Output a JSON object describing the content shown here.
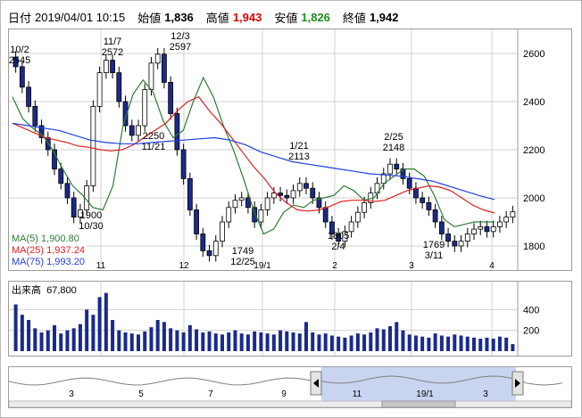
{
  "header": {
    "date_label": "日付",
    "date_value": "2019/04/01 10:15",
    "open_label": "始値",
    "open_value": "1,836",
    "high_label": "高値",
    "high_value": "1,943",
    "low_label": "安値",
    "low_value": "1,826",
    "close_label": "終値",
    "close_value": "1,942"
  },
  "colors": {
    "candle_down": "#1a2a8c",
    "ma5": "#2e7d32",
    "ma25": "#e02020",
    "ma75": "#2040e0",
    "high_text": "#e00000",
    "low_text": "#1e8c1e",
    "volume": "#1a2a8c",
    "navigator_fill": "#c8d4f0"
  },
  "ma_legend": [
    {
      "label": "MA(5)",
      "value": "1,900.80"
    },
    {
      "label": "MA(25)",
      "value": "1,937.24"
    },
    {
      "label": "MA(75)",
      "value": "1,993.20"
    }
  ],
  "volume_panel": {
    "label": "出来高",
    "value": "67,800"
  },
  "chart_data": {
    "type": "line",
    "ylim": [
      1700,
      2700
    ],
    "yticks": [
      "2600",
      "2400",
      "2200",
      "2000",
      "1800"
    ],
    "x_month_labels": [
      "11",
      "12",
      "19/1",
      "2",
      "3",
      "4"
    ],
    "annotations": [
      {
        "date": "10/2",
        "value": "2545"
      },
      {
        "date": "11/7",
        "value": "2572"
      },
      {
        "date": "12/3",
        "value": "2597"
      },
      {
        "date": "10/30",
        "value": "1900"
      },
      {
        "date": "11/21",
        "value": "2250"
      },
      {
        "date": "12/25",
        "value": "1749"
      },
      {
        "date": "1/21",
        "value": "2113"
      },
      {
        "date": "2/4",
        "value": "1805"
      },
      {
        "date": "2/25",
        "value": "2148"
      },
      {
        "date": "3/11",
        "value": "1769"
      }
    ],
    "series": [
      {
        "name": "MA(5)",
        "values": [
          2420,
          2330,
          2290,
          2260,
          2200,
          2120,
          2050,
          2010,
          1960,
          1950,
          2050,
          2300,
          2430,
          2490,
          2440,
          2320,
          2250,
          2280,
          2400,
          2500,
          2420,
          2300,
          2200,
          2080,
          1950,
          1850,
          1870,
          1940,
          1970,
          1960,
          1990,
          2000,
          2010,
          2050,
          2030,
          1990,
          2000,
          2060,
          2090,
          2120,
          2120,
          2090,
          2010,
          1910,
          1880,
          1890,
          1900,
          1900,
          1900
        ]
      },
      {
        "name": "MA(25)",
        "values": [
          2310,
          2290,
          2270,
          2250,
          2240,
          2230,
          2215,
          2210,
          2200,
          2195,
          2200,
          2220,
          2250,
          2280,
          2310,
          2360,
          2400,
          2420,
          2360,
          2310,
          2250,
          2190,
          2130,
          2080,
          2020,
          1980,
          1950,
          1945,
          1950,
          1965,
          1985,
          1990,
          1990,
          1985,
          1990,
          2010,
          2030,
          2040,
          2050,
          2045,
          2030,
          2000,
          1970,
          1950,
          1937
        ]
      },
      {
        "name": "MA(75)",
        "values": [
          2310,
          2300,
          2290,
          2280,
          2260,
          2240,
          2230,
          2225,
          2225,
          2230,
          2235,
          2240,
          2245,
          2250,
          2240,
          2220,
          2190,
          2170,
          2150,
          2140,
          2130,
          2120,
          2110,
          2100,
          2095,
          2090,
          2080,
          2070,
          2050,
          2030,
          2010,
          1993
        ]
      }
    ],
    "ohlc_close": [
      2545,
      2460,
      2380,
      2300,
      2250,
      2200,
      2120,
      2060,
      2000,
      1920,
      1950,
      2050,
      2380,
      2520,
      2572,
      2520,
      2400,
      2300,
      2260,
      2300,
      2450,
      2560,
      2597,
      2480,
      2350,
      2200,
      2080,
      1950,
      1850,
      1780,
      1760,
      1820,
      1900,
      1960,
      1990,
      2000,
      1960,
      1900,
      1950,
      2000,
      2020,
      2010,
      2000,
      2030,
      2060,
      2040,
      2000,
      1960,
      1900,
      1850,
      1820,
      1860,
      1900,
      1940,
      1980,
      2020,
      2060,
      2100,
      2140,
      2120,
      2080,
      2040,
      2000,
      1980,
      1950,
      1900,
      1850,
      1820,
      1800,
      1820,
      1850,
      1870,
      1880,
      1860,
      1880,
      1900,
      1920,
      1942
    ],
    "volume": [
      450,
      350,
      300,
      220,
      180,
      200,
      250,
      170,
      200,
      220,
      260,
      400,
      350,
      520,
      560,
      300,
      200,
      180,
      170,
      160,
      190,
      230,
      300,
      280,
      220,
      200,
      180,
      250,
      210,
      180,
      190,
      170,
      160,
      180,
      200,
      170,
      160,
      190,
      180,
      170,
      160,
      200,
      190,
      180,
      170,
      280,
      180,
      160,
      170,
      150,
      140,
      130,
      150,
      170,
      160,
      180,
      220,
      210,
      240,
      280,
      200,
      160,
      150,
      140,
      130,
      170,
      150,
      140,
      160,
      150,
      140,
      130,
      120,
      130,
      120,
      140,
      130,
      68
    ],
    "volume_yticks": [
      "400",
      "200"
    ],
    "navigator_labels": [
      "3",
      "5",
      "7",
      "9",
      "11",
      "19/1",
      "3"
    ]
  }
}
